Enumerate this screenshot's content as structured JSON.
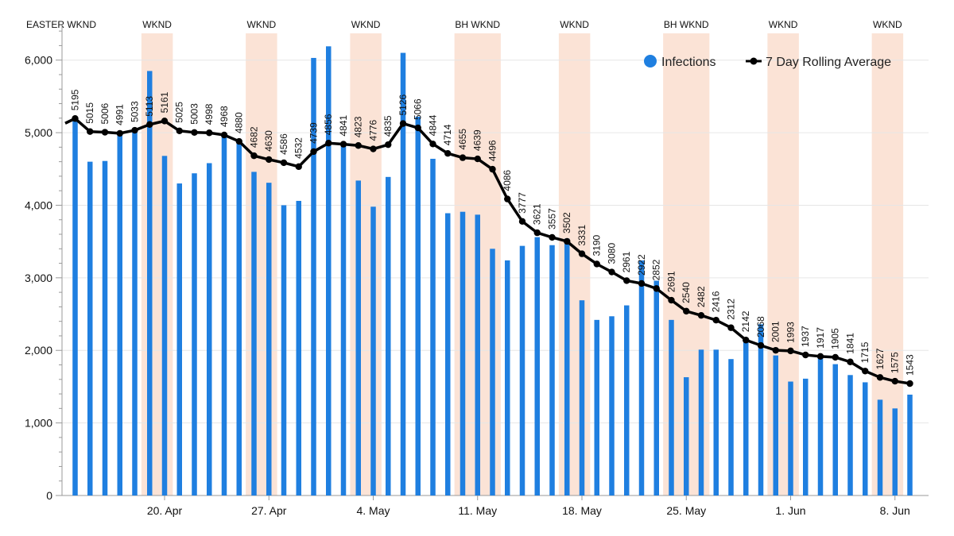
{
  "chart_data": {
    "type": "bar",
    "title": "",
    "xlabel": "",
    "ylabel": "",
    "ylim": [
      0,
      6500
    ],
    "y_ticks": [
      "0",
      "1,000",
      "2,000",
      "3,000",
      "4,000",
      "5,000",
      "6,000"
    ],
    "y_tick_values": [
      0,
      1000,
      2000,
      3000,
      4000,
      5000,
      6000
    ],
    "grid": true,
    "legend_position": "top-right",
    "start_date": "Apr 14",
    "x_tick_labels": [
      {
        "day_index": 6,
        "label": "20. Apr"
      },
      {
        "day_index": 13,
        "label": "27. Apr"
      },
      {
        "day_index": 20,
        "label": "4. May"
      },
      {
        "day_index": 27,
        "label": "11. May"
      },
      {
        "day_index": 34,
        "label": "18. May"
      },
      {
        "day_index": 41,
        "label": "25. May"
      },
      {
        "day_index": 48,
        "label": "1. Jun"
      },
      {
        "day_index": 55,
        "label": "8. Jun"
      }
    ],
    "series": [
      {
        "name": "Infections",
        "type": "bar",
        "color": "#1f7fe0",
        "values": [
          5195,
          4600,
          4610,
          4991,
          5050,
          5850,
          4680,
          4300,
          4440,
          4580,
          4968,
          4850,
          4460,
          4310,
          4000,
          4060,
          6030,
          6190,
          4841,
          4340,
          3980,
          4390,
          6100,
          5220,
          4640,
          3890,
          3910,
          3870,
          3400,
          3240,
          3440,
          3560,
          3450,
          3540,
          2690,
          2420,
          2470,
          2620,
          3240,
          2960,
          2420,
          1630,
          2010,
          2010,
          1880,
          2160,
          2360,
          1930,
          1570,
          1610,
          1900,
          1810,
          1660,
          1560,
          1320,
          1200,
          1390
        ]
      },
      {
        "name": "7 Day Rolling Average",
        "type": "line",
        "color": "#000000",
        "values": [
          5195,
          5015,
          5006,
          4991,
          5033,
          5113,
          5161,
          5025,
          5003,
          4998,
          4968,
          4880,
          4682,
          4630,
          4586,
          4532,
          4739,
          4856,
          4841,
          4823,
          4776,
          4835,
          5126,
          5066,
          4844,
          4714,
          4655,
          4639,
          4496,
          4086,
          3777,
          3621,
          3557,
          3502,
          3331,
          3190,
          3080,
          2961,
          2922,
          2852,
          2691,
          2540,
          2482,
          2416,
          2312,
          2142,
          2068,
          2001,
          1993,
          1937,
          1917,
          1905,
          1841,
          1715,
          1627,
          1575,
          1543
        ]
      }
    ],
    "shaded_periods": [
      {
        "label": "EASTER WKND",
        "start": 0,
        "end": 0
      },
      {
        "label": "WKND",
        "start": 5,
        "end": 6
      },
      {
        "label": "WKND",
        "start": 12,
        "end": 13
      },
      {
        "label": "WKND",
        "start": 19,
        "end": 20
      },
      {
        "label": "BH WKND",
        "start": 26,
        "end": 28
      },
      {
        "label": "WKND",
        "start": 33,
        "end": 34
      },
      {
        "label": "BH WKND",
        "start": 40,
        "end": 42
      },
      {
        "label": "WKND",
        "start": 47,
        "end": 48
      },
      {
        "label": "WKND",
        "start": 54,
        "end": 55
      }
    ],
    "band_color": "#fbe3d6"
  }
}
